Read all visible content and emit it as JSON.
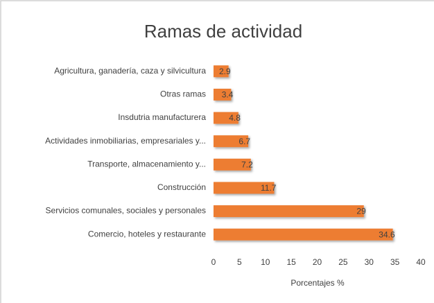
{
  "chart_data": {
    "type": "barh",
    "title": "Ramas de actividad",
    "xlabel": "Porcentajes %",
    "categories": [
      "Agricultura, ganadería, caza y silvicultura",
      "Otras ramas",
      "Insdutria manufacturera",
      "Actividades inmobiliarias, empresariales y...",
      "Transporte, almacenamiento y...",
      "Construcción",
      "Servicios comunales, sociales y personales",
      "Comercio, hoteles y restaurante"
    ],
    "values": [
      2.9,
      3.4,
      4.8,
      6.7,
      7.2,
      11.7,
      29,
      34.6
    ],
    "color": "#ed7d31",
    "xlim": [
      0,
      40
    ],
    "xticks": [
      0,
      5,
      10,
      15,
      20,
      25,
      30,
      35,
      40
    ],
    "grid": false
  }
}
